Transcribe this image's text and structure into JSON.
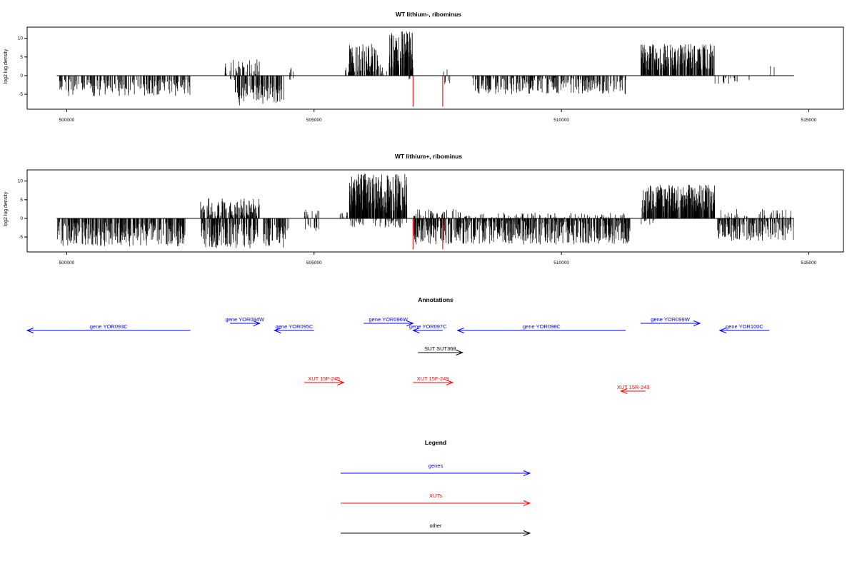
{
  "chart_data": [
    {
      "type": "bar",
      "title": "WT lithium-, ribominus",
      "ylabel": "log2 log density",
      "xlim": [
        499200,
        515700
      ],
      "ylim": [
        -9,
        13
      ],
      "x_ticks": [
        500000,
        505000,
        510000,
        515000
      ],
      "x_tick_labels": [
        "500000",
        "505000",
        "510000",
        "515000"
      ],
      "y_ticks": [
        -5,
        0,
        5,
        10
      ],
      "y_tick_labels": [
        "-5",
        "0",
        "5",
        "10"
      ],
      "baseline": {
        "x0": 499800,
        "x1": 514700,
        "y": 0
      },
      "series": [
        {
          "color": "#000000",
          "segments": [
            {
              "x0": 499800,
              "x1": 502500,
              "min": -5.5,
              "max": -1,
              "density": 1.0,
              "seed": 11
            },
            {
              "x0": 503200,
              "x1": 503900,
              "min": 0.3,
              "max": 4.5,
              "density": 0.9,
              "seed": 12
            },
            {
              "x0": 503300,
              "x1": 503400,
              "min": -2,
              "max": -0.5,
              "density": 0.6,
              "seed": 13
            },
            {
              "x0": 503400,
              "x1": 504400,
              "min": -8,
              "max": -2,
              "density": 1.6,
              "seed": 14
            },
            {
              "x0": 504500,
              "x1": 504600,
              "min": 0.5,
              "max": 2.5,
              "density": 0.6,
              "seed": 15
            },
            {
              "x0": 504500,
              "x1": 504600,
              "min": -1.5,
              "max": -0.5,
              "density": 0.5,
              "seed": 16
            },
            {
              "x0": 505600,
              "x1": 505800,
              "min": 0.5,
              "max": 2.5,
              "density": 0.5,
              "seed": 17
            },
            {
              "x0": 505700,
              "x1": 506300,
              "min": 1,
              "max": 8.5,
              "density": 2.2,
              "seed": 18
            },
            {
              "x0": 506300,
              "x1": 506500,
              "min": 0.5,
              "max": 3,
              "density": 0.6,
              "seed": 19
            },
            {
              "x0": 506500,
              "x1": 507000,
              "min": 1.5,
              "max": 12,
              "density": 3.0,
              "seed": 20
            },
            {
              "x0": 506900,
              "x1": 507000,
              "min": -2,
              "max": -0.5,
              "density": 0.4,
              "seed": 21
            },
            {
              "x0": 507600,
              "x1": 507700,
              "min": 0.5,
              "max": 3.5,
              "density": 0.3,
              "seed": 22
            },
            {
              "x0": 507600,
              "x1": 507800,
              "min": -2.5,
              "max": -0.5,
              "density": 0.4,
              "seed": 23
            },
            {
              "x0": 508200,
              "x1": 511300,
              "min": -5,
              "max": -0.5,
              "density": 1.2,
              "seed": 24
            },
            {
              "x0": 511600,
              "x1": 513100,
              "min": 1.5,
              "max": 8.5,
              "density": 2.4,
              "seed": 25
            },
            {
              "x0": 513100,
              "x1": 513400,
              "min": -3.5,
              "max": -0.5,
              "density": 0.4,
              "seed": 26
            },
            {
              "x0": 513400,
              "x1": 513800,
              "min": -2,
              "max": -0.5,
              "density": 0.3,
              "seed": 27
            },
            {
              "x0": 514200,
              "x1": 514300,
              "min": 1,
              "max": 3,
              "density": 0.3,
              "seed": 28
            }
          ]
        },
        {
          "color": "#ff0000",
          "bars": [
            {
              "x": 507000,
              "y": -8.3
            },
            {
              "x": 507600,
              "y": -8.3
            }
          ]
        }
      ]
    },
    {
      "type": "bar",
      "title": "WT lithium+, ribominus",
      "ylabel": "log2 log density",
      "xlim": [
        499200,
        515700
      ],
      "ylim": [
        -9,
        13
      ],
      "x_ticks": [
        500000,
        505000,
        510000,
        515000
      ],
      "x_tick_labels": [
        "500000",
        "505000",
        "510000",
        "515000"
      ],
      "y_ticks": [
        -5,
        0,
        5,
        10
      ],
      "y_tick_labels": [
        "-5",
        "0",
        "5",
        "10"
      ],
      "baseline": {
        "x0": 499800,
        "x1": 514700,
        "y": 0
      },
      "series": [
        {
          "color": "#000000",
          "segments": [
            {
              "x0": 499800,
              "x1": 502400,
              "min": -7.5,
              "max": -1,
              "density": 1.8,
              "seed": 31
            },
            {
              "x0": 502700,
              "x1": 503900,
              "min": 0.5,
              "max": 5.5,
              "density": 1.6,
              "seed": 32
            },
            {
              "x0": 502700,
              "x1": 504500,
              "min": -8,
              "max": -1,
              "density": 1.6,
              "seed": 33
            },
            {
              "x0": 504800,
              "x1": 505100,
              "min": 0.5,
              "max": 2.5,
              "density": 0.6,
              "seed": 34
            },
            {
              "x0": 504800,
              "x1": 505100,
              "min": -3.5,
              "max": -0.5,
              "density": 0.6,
              "seed": 35
            },
            {
              "x0": 505500,
              "x1": 505700,
              "min": 0.5,
              "max": 2.5,
              "density": 0.5,
              "seed": 36
            },
            {
              "x0": 505700,
              "x1": 506900,
              "min": 1.5,
              "max": 12,
              "density": 3.2,
              "seed": 37
            },
            {
              "x0": 505700,
              "x1": 506900,
              "min": -2.5,
              "max": -0.5,
              "density": 0.5,
              "seed": 38
            },
            {
              "x0": 507000,
              "x1": 508000,
              "min": 0.3,
              "max": 2.5,
              "density": 0.6,
              "seed": 39
            },
            {
              "x0": 507000,
              "x1": 511400,
              "min": -7,
              "max": -0.5,
              "density": 2.0,
              "seed": 40
            },
            {
              "x0": 508000,
              "x1": 511300,
              "min": 0.3,
              "max": 1.5,
              "density": 0.3,
              "seed": 41
            },
            {
              "x0": 511600,
              "x1": 513100,
              "min": 1.5,
              "max": 9,
              "density": 3.0,
              "seed": 42
            },
            {
              "x0": 511600,
              "x1": 511900,
              "min": -2,
              "max": -0.5,
              "density": 0.4,
              "seed": 43
            },
            {
              "x0": 513100,
              "x1": 514700,
              "min": -6,
              "max": -0.5,
              "density": 1.4,
              "seed": 44
            },
            {
              "x0": 513100,
              "x1": 514700,
              "min": 0.3,
              "max": 2.5,
              "density": 0.3,
              "seed": 45
            }
          ]
        },
        {
          "color": "#ff0000",
          "bars": [
            {
              "x": 507000,
              "y": -8.3
            },
            {
              "x": 507600,
              "y": -8.3
            }
          ]
        }
      ]
    },
    {
      "type": "diagram",
      "title": "Annotations",
      "xlim": [
        499200,
        515700
      ],
      "features": [
        {
          "label": "gene YOR093C",
          "x0": 499200,
          "x1": 502500,
          "strand": "-",
          "row": 1,
          "color": "#0000ff"
        },
        {
          "label": "gene YOR094W",
          "x0": 503300,
          "x1": 503900,
          "strand": "+",
          "row": 0,
          "color": "#0000ff"
        },
        {
          "label": "gene YOR095C",
          "x0": 504200,
          "x1": 505000,
          "strand": "-",
          "row": 1,
          "color": "#0000ff"
        },
        {
          "label": "gene YOR096W",
          "x0": 506000,
          "x1": 507000,
          "strand": "+",
          "row": 0,
          "color": "#0000ff"
        },
        {
          "label": "gene YOR097C",
          "x0": 507000,
          "x1": 507600,
          "strand": "-",
          "row": 1,
          "color": "#0000ff"
        },
        {
          "label": "gene YOR098C",
          "x0": 507900,
          "x1": 511300,
          "strand": "-",
          "row": 1,
          "color": "#0000ff"
        },
        {
          "label": "gene YOR099W",
          "x0": 511600,
          "x1": 512800,
          "strand": "+",
          "row": 0,
          "color": "#0000ff"
        },
        {
          "label": "gene YOR100C",
          "x0": 513200,
          "x1": 514200,
          "strand": "-",
          "row": 1,
          "color": "#0000ff"
        },
        {
          "label": "SUT SUT368",
          "x0": 507100,
          "x1": 508000,
          "strand": "+",
          "row": 2,
          "color": "#000000"
        },
        {
          "label": "XUT 15F-245",
          "x0": 504800,
          "x1": 505600,
          "strand": "+",
          "row": 3,
          "color": "#ff0000"
        },
        {
          "label": "XUT 15F-249",
          "x0": 507000,
          "x1": 507800,
          "strand": "+",
          "row": 3,
          "color": "#ff0000"
        },
        {
          "label": "XUT 15R-243",
          "x0": 511200,
          "x1": 511700,
          "strand": "-",
          "row": 4,
          "color": "#ff0000"
        }
      ]
    },
    {
      "type": "legend",
      "title": "Legend",
      "entries": [
        {
          "label": "genes",
          "color": "#0000ff"
        },
        {
          "label": "XUTs",
          "color": "#ff0000"
        },
        {
          "label": "other",
          "color": "#000000"
        }
      ]
    }
  ]
}
